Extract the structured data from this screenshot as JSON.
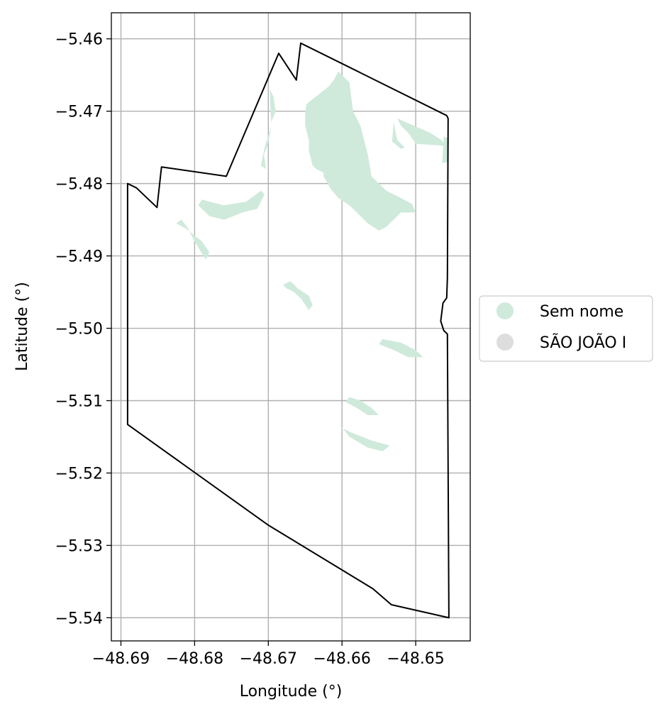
{
  "axes": {
    "xlabel": "Longitude (°)",
    "ylabel": "Latitude (°)",
    "xlim": [
      -48.6913,
      -48.6426
    ],
    "ylim": [
      -5.5432,
      -5.4564
    ],
    "xticks": [
      {
        "value": -48.69,
        "label": "−48.69"
      },
      {
        "value": -48.68,
        "label": "−48.68"
      },
      {
        "value": -48.67,
        "label": "−48.67"
      },
      {
        "value": -48.66,
        "label": "−48.66"
      },
      {
        "value": -48.65,
        "label": "−48.65"
      }
    ],
    "yticks": [
      {
        "value": -5.46,
        "label": "−5.46"
      },
      {
        "value": -5.47,
        "label": "−5.47"
      },
      {
        "value": -5.48,
        "label": "−5.48"
      },
      {
        "value": -5.49,
        "label": "−5.49"
      },
      {
        "value": -5.5,
        "label": "−5.50"
      },
      {
        "value": -5.51,
        "label": "−5.51"
      },
      {
        "value": -5.52,
        "label": "−5.52"
      },
      {
        "value": -5.53,
        "label": "−5.53"
      },
      {
        "value": -5.54,
        "label": "−5.54"
      }
    ],
    "grid": true
  },
  "legend": {
    "placement": "outside-right",
    "items": [
      {
        "label": "Sem nome",
        "color": "#cfeadb"
      },
      {
        "label": "SÃO JOÃO I",
        "color": "#dddddd"
      }
    ]
  },
  "colors": {
    "boundary": "#000000",
    "fill": "#cfeadb",
    "grid": "#b0b0b0"
  },
  "map_data": {
    "boundary": [
      [
        -48.6879,
        -5.4806
      ],
      [
        -48.6851,
        -5.4833
      ],
      [
        -48.6845,
        -5.4777
      ],
      [
        -48.6757,
        -5.479
      ],
      [
        -48.6686,
        -5.462
      ],
      [
        -48.6662,
        -5.4657
      ],
      [
        -48.6656,
        -5.4606
      ],
      [
        -48.6458,
        -5.4706
      ],
      [
        -48.6456,
        -5.471
      ],
      [
        -48.6457,
        -5.493
      ],
      [
        -48.6458,
        -5.4958
      ],
      [
        -48.6463,
        -5.4965
      ],
      [
        -48.6466,
        -5.499
      ],
      [
        -48.6462,
        -5.5003
      ],
      [
        -48.6457,
        -5.5008
      ],
      [
        -48.6455,
        -5.54
      ],
      [
        -48.6533,
        -5.5382
      ],
      [
        -48.6558,
        -5.536
      ],
      [
        -48.67,
        -5.5272
      ],
      [
        -48.6891,
        -5.5133
      ],
      [
        -48.6891,
        -5.48
      ]
    ],
    "regions": [
      [
        [
          -48.6605,
          -5.4645
        ],
        [
          -48.659,
          -5.466
        ],
        [
          -48.6585,
          -5.47
        ],
        [
          -48.6575,
          -5.472
        ],
        [
          -48.6565,
          -5.476
        ],
        [
          -48.656,
          -5.479
        ],
        [
          -48.654,
          -5.481
        ],
        [
          -48.652,
          -5.482
        ],
        [
          -48.6505,
          -5.4828
        ],
        [
          -48.65,
          -5.484
        ],
        [
          -48.652,
          -5.484
        ],
        [
          -48.654,
          -5.486
        ],
        [
          -48.655,
          -5.4865
        ],
        [
          -48.6565,
          -5.4855
        ],
        [
          -48.659,
          -5.483
        ],
        [
          -48.6605,
          -5.482
        ],
        [
          -48.6615,
          -5.4808
        ],
        [
          -48.6625,
          -5.479
        ],
        [
          -48.6625,
          -5.4785
        ],
        [
          -48.6635,
          -5.478
        ],
        [
          -48.664,
          -5.4775
        ],
        [
          -48.6645,
          -5.4755
        ],
        [
          -48.6645,
          -5.474
        ],
        [
          -48.665,
          -5.472
        ],
        [
          -48.665,
          -5.47
        ],
        [
          -48.6648,
          -5.469
        ],
        [
          -48.6617,
          -5.4665
        ],
        [
          -48.661,
          -5.4655
        ]
      ],
      [
        [
          -48.656,
          -5.48
        ],
        [
          -48.6555,
          -5.4825
        ],
        [
          -48.656,
          -5.484
        ],
        [
          -48.6568,
          -5.4838
        ],
        [
          -48.6565,
          -5.4815
        ]
      ],
      [
        [
          -48.6525,
          -5.471
        ],
        [
          -48.648,
          -5.473
        ],
        [
          -48.6465,
          -5.474
        ],
        [
          -48.646,
          -5.4748
        ],
        [
          -48.65,
          -5.4745
        ],
        [
          -48.651,
          -5.473
        ],
        [
          -48.652,
          -5.472
        ]
      ],
      [
        [
          -48.653,
          -5.4715
        ],
        [
          -48.6525,
          -5.474
        ],
        [
          -48.6515,
          -5.475
        ],
        [
          -48.652,
          -5.4752
        ],
        [
          -48.6532,
          -5.4742
        ]
      ],
      [
        [
          -48.6462,
          -5.4735
        ],
        [
          -48.6464,
          -5.4772
        ],
        [
          -48.6456,
          -5.477
        ],
        [
          -48.6455,
          -5.4738
        ]
      ],
      [
        [
          -48.6696,
          -5.4715
        ],
        [
          -48.669,
          -5.47
        ],
        [
          -48.6693,
          -5.468
        ],
        [
          -48.6698,
          -5.467
        ],
        [
          -48.6697,
          -5.47
        ]
      ],
      [
        [
          -48.6696,
          -5.472
        ],
        [
          -48.6705,
          -5.475
        ],
        [
          -48.671,
          -5.4775
        ],
        [
          -48.6703,
          -5.478
        ],
        [
          -48.6706,
          -5.476
        ],
        [
          -48.67,
          -5.4745
        ]
      ],
      [
        [
          -48.6795,
          -5.483
        ],
        [
          -48.678,
          -5.4845
        ],
        [
          -48.676,
          -5.485
        ],
        [
          -48.6735,
          -5.484
        ],
        [
          -48.6715,
          -5.4835
        ],
        [
          -48.6705,
          -5.4815
        ],
        [
          -48.671,
          -5.481
        ],
        [
          -48.673,
          -5.4825
        ],
        [
          -48.676,
          -5.483
        ],
        [
          -48.678,
          -5.4825
        ],
        [
          -48.679,
          -5.4822
        ]
      ],
      [
        [
          -48.6818,
          -5.485
        ],
        [
          -48.681,
          -5.486
        ],
        [
          -48.68,
          -5.488
        ],
        [
          -48.6785,
          -5.4905
        ],
        [
          -48.678,
          -5.4895
        ],
        [
          -48.679,
          -5.488
        ],
        [
          -48.6812,
          -5.4862
        ],
        [
          -48.6825,
          -5.4855
        ]
      ],
      [
        [
          -48.667,
          -5.4935
        ],
        [
          -48.666,
          -5.4945
        ],
        [
          -48.6645,
          -5.4955
        ],
        [
          -48.664,
          -5.4968
        ],
        [
          -48.6645,
          -5.4975
        ],
        [
          -48.6655,
          -5.496
        ],
        [
          -48.6665,
          -5.495
        ],
        [
          -48.6675,
          -5.4945
        ],
        [
          -48.668,
          -5.494
        ]
      ],
      [
        [
          -48.6545,
          -5.5015
        ],
        [
          -48.652,
          -5.502
        ],
        [
          -48.65,
          -5.503
        ],
        [
          -48.649,
          -5.504
        ],
        [
          -48.651,
          -5.504
        ],
        [
          -48.653,
          -5.503
        ],
        [
          -48.655,
          -5.5022
        ]
      ],
      [
        [
          -48.659,
          -5.5095
        ],
        [
          -48.6575,
          -5.51
        ],
        [
          -48.656,
          -5.511
        ],
        [
          -48.655,
          -5.512
        ],
        [
          -48.6565,
          -5.512
        ],
        [
          -48.658,
          -5.511
        ],
        [
          -48.6595,
          -5.5102
        ]
      ],
      [
        [
          -48.6605,
          -5.513
        ],
        [
          -48.659,
          -5.515
        ],
        [
          -48.6565,
          -5.5165
        ],
        [
          -48.6545,
          -5.517
        ],
        [
          -48.6535,
          -5.5162
        ],
        [
          -48.656,
          -5.5155
        ],
        [
          -48.6585,
          -5.5145
        ],
        [
          -48.66,
          -5.5138
        ]
      ]
    ]
  }
}
